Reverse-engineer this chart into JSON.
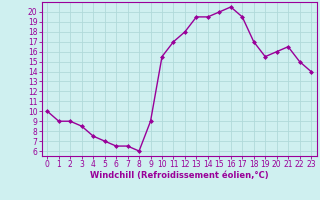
{
  "x": [
    0,
    1,
    2,
    3,
    4,
    5,
    6,
    7,
    8,
    9,
    10,
    11,
    12,
    13,
    14,
    15,
    16,
    17,
    18,
    19,
    20,
    21,
    22,
    23
  ],
  "y": [
    10,
    9,
    9,
    8.5,
    7.5,
    7,
    6.5,
    6.5,
    6,
    9,
    15.5,
    17,
    18,
    19.5,
    19.5,
    20,
    20.5,
    19.5,
    17,
    15.5,
    16,
    16.5,
    15,
    14
  ],
  "line_color": "#990099",
  "marker": "D",
  "marker_size": 2,
  "linewidth": 1.0,
  "xlabel": "Windchill (Refroidissement éolien,°C)",
  "xlabel_fontsize": 6,
  "bg_color": "#cff0f0",
  "grid_color": "#b0dada",
  "xlim": [
    -0.5,
    23.5
  ],
  "ylim": [
    5.5,
    21.0
  ],
  "yticks": [
    6,
    7,
    8,
    9,
    10,
    11,
    12,
    13,
    14,
    15,
    16,
    17,
    18,
    19,
    20
  ],
  "xticks": [
    0,
    1,
    2,
    3,
    4,
    5,
    6,
    7,
    8,
    9,
    10,
    11,
    12,
    13,
    14,
    15,
    16,
    17,
    18,
    19,
    20,
    21,
    22,
    23
  ],
  "tick_fontsize": 5.5,
  "spine_color": "#990099",
  "label_color": "#990099"
}
